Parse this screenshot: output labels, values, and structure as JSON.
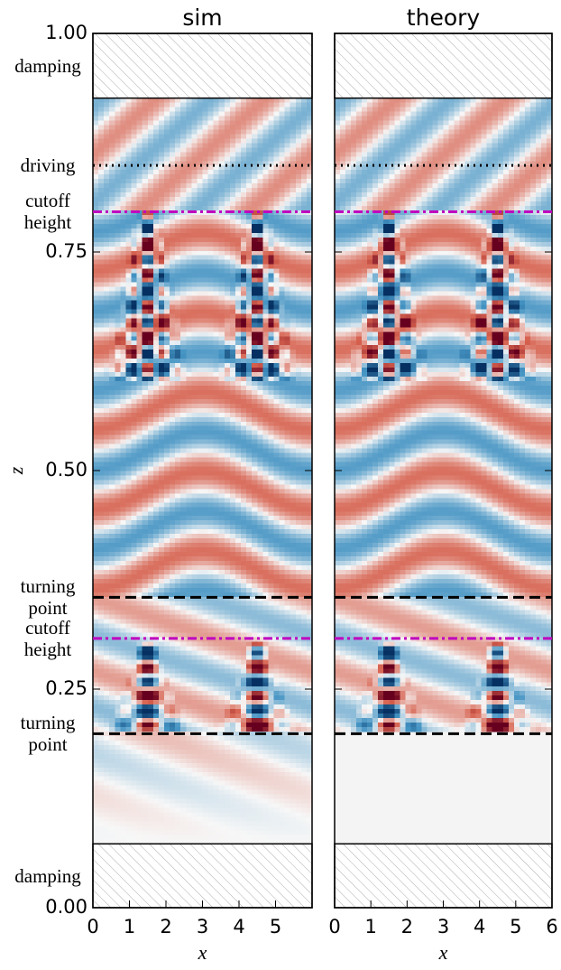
{
  "chart_data": {
    "type": "heatmap",
    "panels": [
      {
        "title": "sim",
        "xlim": [
          0,
          6
        ],
        "xticks": [
          0,
          1,
          2,
          3,
          4,
          5
        ]
      },
      {
        "title": "theory",
        "xlim": [
          0,
          6
        ],
        "xticks": [
          0,
          1,
          2,
          3,
          4,
          5,
          6
        ]
      }
    ],
    "xlabel": "x",
    "ylabel": "z",
    "ylim": [
      0,
      1
    ],
    "yticks": [
      {
        "value": 0,
        "label": "0.00"
      },
      {
        "value": 0.25,
        "label": "0.25"
      },
      {
        "value": 0.5,
        "label": "0.50"
      },
      {
        "value": 0.75,
        "label": "0.75"
      },
      {
        "value": 1,
        "label": "1.00"
      }
    ],
    "damping": [
      {
        "label": "damping",
        "zlim": [
          0.926,
          1
        ]
      },
      {
        "label": "damping",
        "zlim": [
          0,
          0.073
        ]
      }
    ],
    "lines": [
      {
        "label": "driving",
        "z": 0.849,
        "style": "dotted",
        "color": "#000000"
      },
      {
        "label": "cutoff height",
        "z": 0.796,
        "style": "dashdot",
        "color": "#bf00bf"
      },
      {
        "label": "turning point",
        "z": 0.355,
        "style": "dashed",
        "color": "#000000"
      },
      {
        "label": "cutoff height",
        "z": 0.308,
        "style": "dashdot",
        "color": "#bf00bf"
      },
      {
        "label": "turning point",
        "z": 0.199,
        "style": "dashed",
        "color": "#000000"
      }
    ]
  }
}
